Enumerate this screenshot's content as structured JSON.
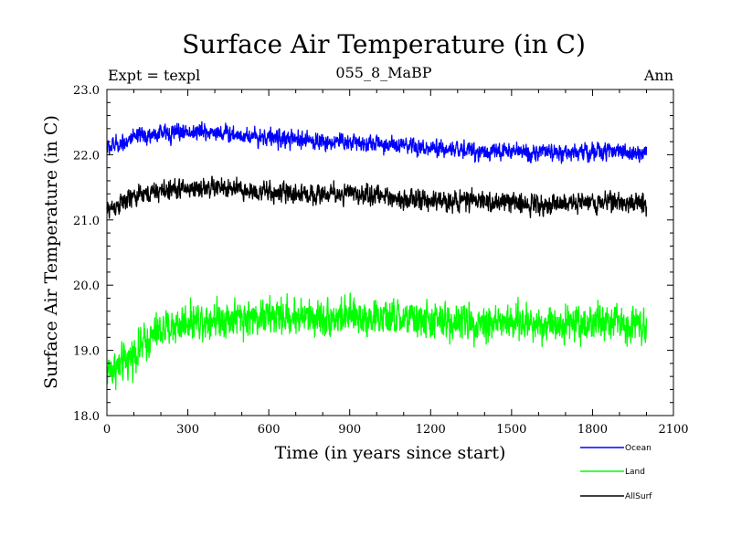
{
  "chart_data": {
    "type": "line",
    "title": "Surface Air Temperature (in C)",
    "subtitle": "055_8_MaBP",
    "experiment_label": "Expt = texpl",
    "period_label": "Ann",
    "xlabel": "Time (in years since start)",
    "ylabel": "Surface Air Temperature (in C)",
    "xlim": [
      0,
      2100
    ],
    "ylim": [
      18.0,
      23.0
    ],
    "x_ticks": [
      0,
      300,
      600,
      900,
      1200,
      1500,
      1800,
      2100
    ],
    "x_tick_labels": [
      "0",
      "300",
      "600",
      "900",
      "1200",
      "1500",
      "1800",
      "2100"
    ],
    "y_ticks": [
      18.0,
      19.0,
      20.0,
      21.0,
      22.0,
      23.0
    ],
    "y_tick_labels": [
      "18.0",
      "19.0",
      "20.0",
      "21.0",
      "22.0",
      "23.0"
    ],
    "x_range": [
      0,
      2000
    ],
    "series": [
      {
        "name": "Ocean",
        "color": "#0000ff",
        "knots_x": [
          0,
          100,
          200,
          300,
          400,
          500,
          600,
          700,
          800,
          900,
          1000,
          1100,
          1200,
          1300,
          1400,
          1500,
          1600,
          1700,
          1800,
          1900,
          2000
        ],
        "knots_y": [
          22.1,
          22.25,
          22.33,
          22.35,
          22.35,
          22.3,
          22.27,
          22.22,
          22.2,
          22.2,
          22.17,
          22.12,
          22.08,
          22.08,
          22.05,
          22.05,
          22.03,
          22.03,
          22.05,
          22.05,
          22.03
        ],
        "noise_amplitude": 0.14
      },
      {
        "name": "Land",
        "color": "#00ff00",
        "knots_x": [
          0,
          50,
          100,
          150,
          200,
          300,
          400,
          500,
          600,
          700,
          800,
          900,
          1000,
          1100,
          1200,
          1300,
          1400,
          1500,
          1600,
          1700,
          1800,
          1900,
          2000
        ],
        "knots_y": [
          18.7,
          18.75,
          18.95,
          19.15,
          19.3,
          19.45,
          19.5,
          19.5,
          19.52,
          19.52,
          19.5,
          19.52,
          19.5,
          19.48,
          19.45,
          19.45,
          19.43,
          19.42,
          19.42,
          19.42,
          19.43,
          19.42,
          19.42
        ],
        "noise_amplitude": 0.3
      },
      {
        "name": "AllSurf",
        "color": "#000000",
        "knots_x": [
          0,
          100,
          200,
          300,
          400,
          500,
          600,
          700,
          800,
          900,
          1000,
          1100,
          1200,
          1300,
          1400,
          1500,
          1600,
          1700,
          1800,
          1900,
          2000
        ],
        "knots_y": [
          21.15,
          21.35,
          21.45,
          21.48,
          21.5,
          21.45,
          21.42,
          21.4,
          21.4,
          21.4,
          21.38,
          21.33,
          21.28,
          21.3,
          21.28,
          21.27,
          21.25,
          21.25,
          21.28,
          21.28,
          21.25
        ],
        "noise_amplitude": 0.16
      }
    ],
    "legend": {
      "position": "bottom-right",
      "entries": [
        "Ocean",
        "Land",
        "AllSurf"
      ]
    }
  }
}
